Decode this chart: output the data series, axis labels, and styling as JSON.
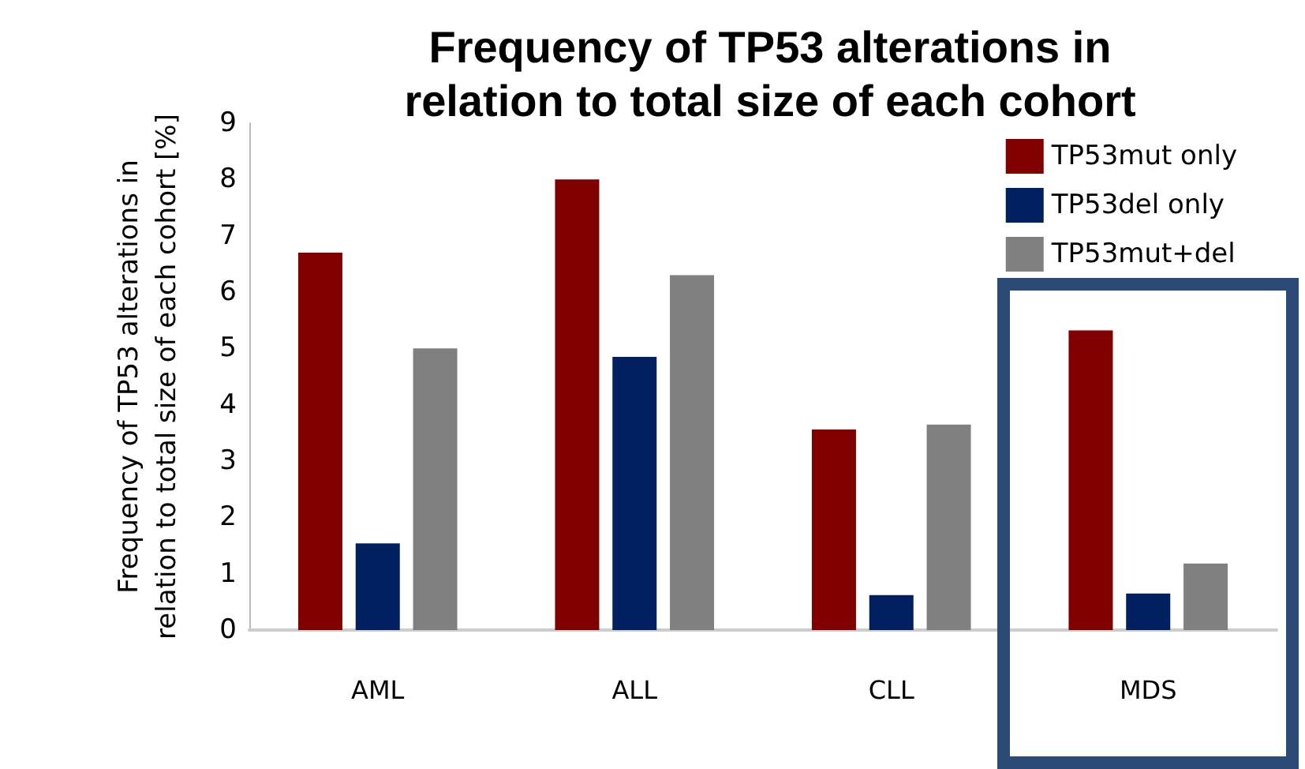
{
  "chart_data": {
    "type": "bar",
    "title": "Frequency of TP53 alterations in\nrelation to total size of each cohort",
    "ylabel": "Frequency of TP53 alterations in\nrelation to total size of each cohort [%]",
    "categories": [
      "AML",
      "ALL",
      "CLL",
      "MDS"
    ],
    "series": [
      {
        "name": "TP53mut only",
        "color": "#800000",
        "values": [
          6.7,
          8.0,
          3.56,
          5.32
        ]
      },
      {
        "name": "TP53del only",
        "color": "#002060",
        "values": [
          1.54,
          4.85,
          0.62,
          0.65
        ]
      },
      {
        "name": "TP53mut+del",
        "color": "#808080",
        "values": [
          5.0,
          6.3,
          3.65,
          1.18
        ]
      }
    ],
    "ylim": [
      0,
      9
    ],
    "yticks": [
      0,
      1,
      2,
      3,
      4,
      5,
      6,
      7,
      8,
      9
    ],
    "grid": false,
    "legend": "top right"
  }
}
